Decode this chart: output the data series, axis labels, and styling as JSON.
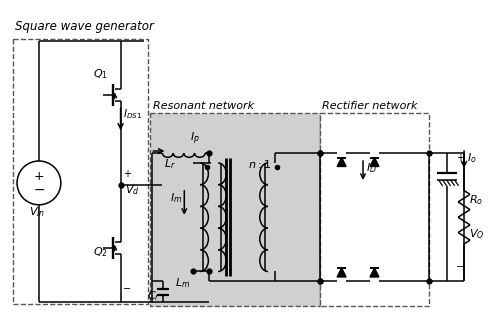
{
  "title": "Square wave generator",
  "resonant_label": "Resonant network",
  "rectifier_label": "Rectifier network",
  "bg_color": "#ffffff",
  "lc": "#000000",
  "res_bg": "#d0d0d0"
}
